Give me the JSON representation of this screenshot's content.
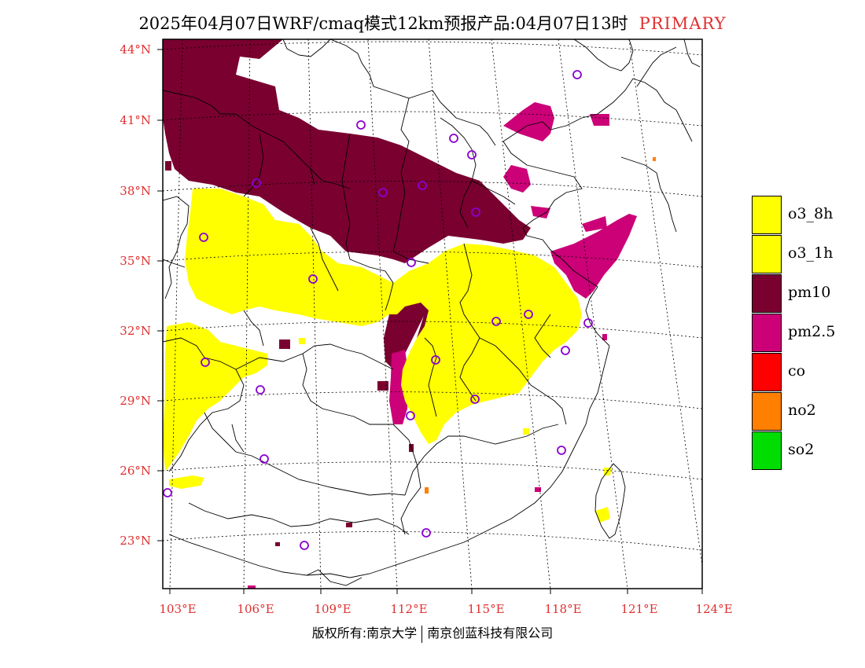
{
  "title": {
    "main": "2025年04月07日WRF/cmaq模式12km预报产品:04月07日13时",
    "variable": "PRIMARY"
  },
  "axes": {
    "lat_labels": [
      "44°N",
      "41°N",
      "38°N",
      "35°N",
      "32°N",
      "29°N",
      "26°N",
      "23°N"
    ],
    "lon_labels": [
      "103°E",
      "106°E",
      "109°E",
      "112°E",
      "115°E",
      "118°E",
      "121°E",
      "124°E"
    ]
  },
  "legend": [
    {
      "label": "o3_8h",
      "color": "#ffff00"
    },
    {
      "label": "o3_1h",
      "color": "#ffff00"
    },
    {
      "label": "pm10",
      "color": "#7a0030"
    },
    {
      "label": "pm2.5",
      "color": "#cc0077"
    },
    {
      "label": "co",
      "color": "#ff0000"
    },
    {
      "label": "no2",
      "color": "#ff7f00"
    },
    {
      "label": "so2",
      "color": "#00dd00"
    }
  ],
  "credit": {
    "left": "版权所有:南京大学",
    "right": "南京创蓝科技有限公司"
  }
}
